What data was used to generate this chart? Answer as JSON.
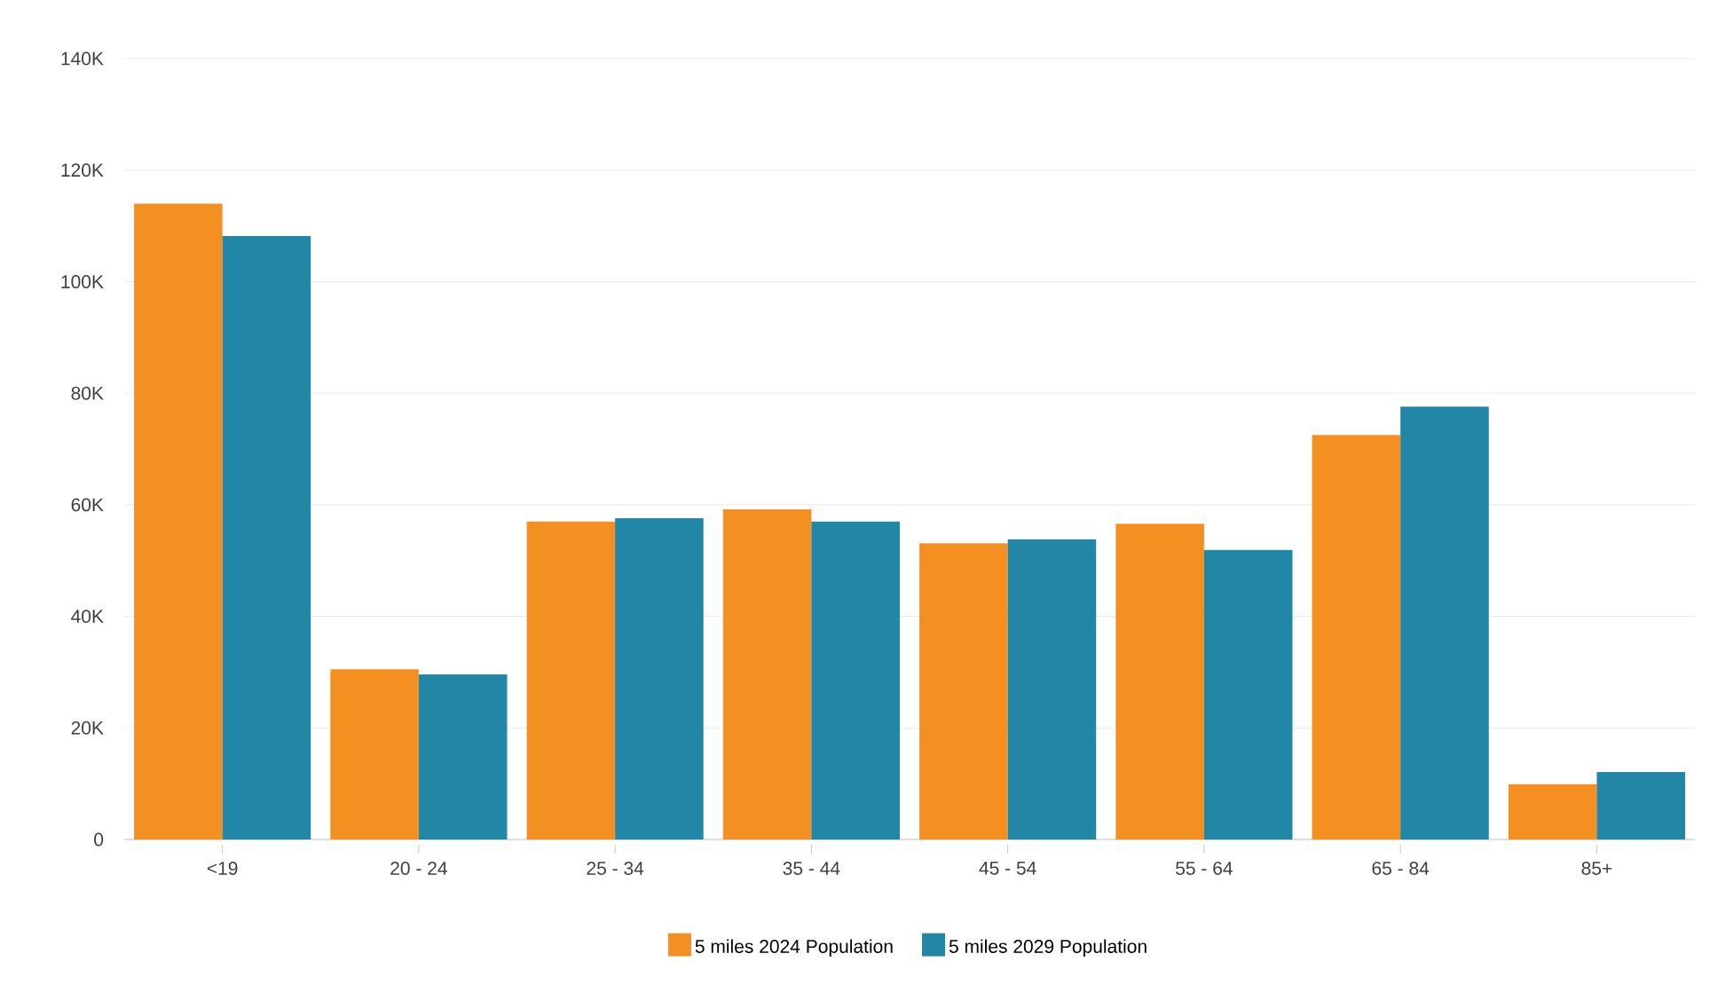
{
  "chart_data": {
    "type": "bar",
    "categories": [
      "<19",
      "20 - 24",
      "25 - 34",
      "35 - 44",
      "45 - 54",
      "55 - 64",
      "65 - 84",
      "85+"
    ],
    "series": [
      {
        "name": "5 miles 2024 Population",
        "color": "#f39021",
        "values": [
          114000,
          30500,
          57000,
          59200,
          53100,
          56600,
          72500,
          9900
        ]
      },
      {
        "name": "5 miles 2029 Population",
        "color": "#2286a6",
        "values": [
          108200,
          29600,
          57600,
          57000,
          53800,
          51900,
          77600,
          12100
        ]
      }
    ],
    "ylim": [
      0,
      140000
    ],
    "yticks": [
      0,
      {
        "value": 20000,
        "label": "20K"
      },
      {
        "value": 40000,
        "label": "40K"
      },
      {
        "value": 60000,
        "label": "60K"
      },
      {
        "value": 80000,
        "label": "80K"
      },
      {
        "value": 100000,
        "label": "100K"
      },
      {
        "value": 120000,
        "label": "120K"
      },
      {
        "value": 140000,
        "label": "140K"
      }
    ],
    "grid": "y",
    "legend": "bottom"
  }
}
